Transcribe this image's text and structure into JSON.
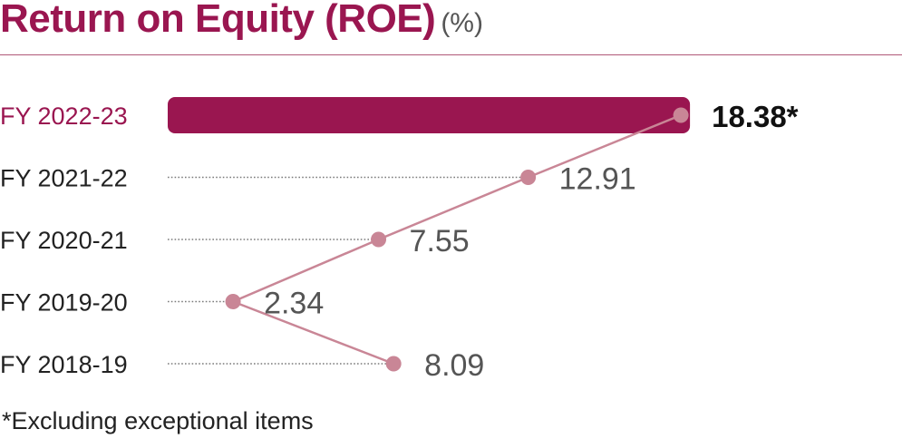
{
  "header": {
    "title": "Return on Equity (ROE)",
    "unit": "(%)"
  },
  "footnote": "*Excluding exceptional items",
  "colors": {
    "accent": "#9a1650",
    "line": "#c98696",
    "value_text": "#555555",
    "label_text": "#222222",
    "dots": "#7a7a7a"
  },
  "chart_data": {
    "type": "bar",
    "categories": [
      "FY 2022-23",
      "FY 2021-22",
      "FY 2020-21",
      "FY 2019-20",
      "FY 2018-19"
    ],
    "values": [
      18.38,
      12.91,
      7.55,
      2.34,
      8.09
    ],
    "value_labels": [
      "18.38*",
      "12.91",
      "7.55",
      "2.34",
      "8.09"
    ],
    "highlight_index": 0,
    "xlim": [
      0,
      20
    ],
    "grid": false,
    "legend": "none"
  }
}
